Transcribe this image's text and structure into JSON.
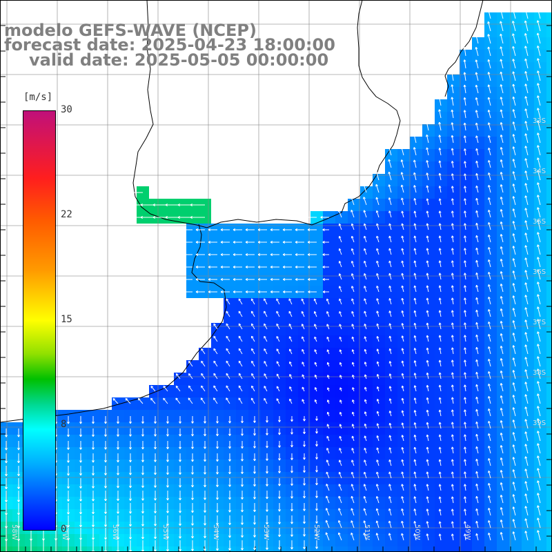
{
  "title": {
    "model": "modelo GEFS-WAVE (NCEP)",
    "forecast": "forecast date: 2025-04-23 18:00:00",
    "valid": "valid date: 2025-05-05 00:00:00"
  },
  "colorbar": {
    "unit": "[m/s]",
    "ticks": [
      "30",
      "22",
      "15",
      "8",
      "0"
    ],
    "range": [
      0,
      30
    ],
    "colors": [
      "#0000ff",
      "#0040ff",
      "#00b0ff",
      "#00ffff",
      "#00d890",
      "#00c000",
      "#ffff00",
      "#ff9a00",
      "#ff1e1e",
      "#c0107a"
    ]
  },
  "map": {
    "lon_labels": [
      "58W",
      "57W",
      "56W",
      "55W",
      "54W",
      "53W",
      "52W",
      "51W",
      "50W",
      "49W"
    ],
    "lat_labels": [
      "33S",
      "34S",
      "35S",
      "36S",
      "37S",
      "38S",
      "39S"
    ],
    "land_color": "#ffffff",
    "grid_color": "#888888",
    "vector_color": "#ffffff"
  }
}
